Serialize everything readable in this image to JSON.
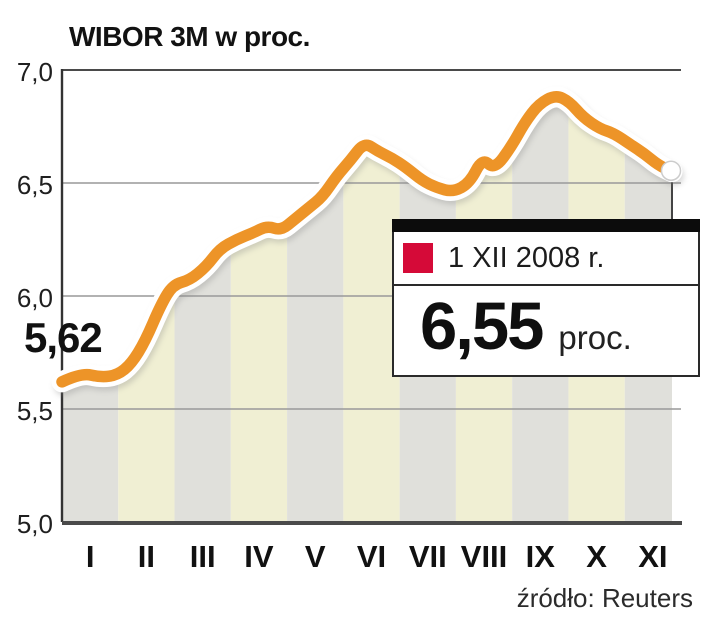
{
  "title": "WIBOR 3M w proc.",
  "source": "źródło: Reuters",
  "start_label": "5,62",
  "callout": {
    "date": "1 XII 2008 r.",
    "value": "6,55",
    "unit": "proc.",
    "marker_color": "#D50A38"
  },
  "colors": {
    "line": "#ED9428",
    "line_halo": "#FFFFFF",
    "endpoint_fill": "#FFFFFF",
    "endpoint_ring": "#CCCCCC",
    "stripe_gray": "#E0E0DB",
    "stripe_cream": "#F0EFD3",
    "grid": "#999999",
    "axis": "#4A4A4A",
    "connector": "#444444",
    "shadow": "#808080"
  },
  "chart_data": {
    "type": "line",
    "title": "WIBOR 3M w proc.",
    "ylabel": "proc.",
    "ylim": [
      5.0,
      7.0
    ],
    "xlim": [
      0,
      11
    ],
    "grid": "horizontal",
    "legend_position": "none",
    "y_ticks": [
      7.0,
      6.5,
      6.0,
      5.5,
      5.0
    ],
    "y_tick_labels": [
      "7,0",
      "6,5",
      "6,0",
      "5,5",
      "5,0"
    ],
    "x_tick_labels": [
      "I",
      "II",
      "III",
      "IV",
      "V",
      "VI",
      "VII",
      "VIII",
      "IX",
      "X",
      "XI"
    ],
    "start_value": 5.62,
    "end_value": 6.55,
    "end_date_label": "1 XII 2008 r.",
    "series": [
      {
        "name": "WIBOR 3M",
        "points": [
          [
            0.0,
            5.62
          ],
          [
            0.35,
            5.66
          ],
          [
            0.7,
            5.64
          ],
          [
            1.0,
            5.65
          ],
          [
            1.25,
            5.7
          ],
          [
            1.5,
            5.8
          ],
          [
            1.78,
            5.96
          ],
          [
            2.0,
            6.05
          ],
          [
            2.3,
            6.07
          ],
          [
            2.6,
            6.13
          ],
          [
            2.85,
            6.21
          ],
          [
            3.15,
            6.25
          ],
          [
            3.45,
            6.28
          ],
          [
            3.7,
            6.31
          ],
          [
            3.95,
            6.29
          ],
          [
            4.2,
            6.34
          ],
          [
            4.45,
            6.39
          ],
          [
            4.7,
            6.44
          ],
          [
            4.95,
            6.53
          ],
          [
            5.2,
            6.6
          ],
          [
            5.45,
            6.68
          ],
          [
            5.7,
            6.64
          ],
          [
            5.95,
            6.61
          ],
          [
            6.2,
            6.57
          ],
          [
            6.5,
            6.51
          ],
          [
            6.75,
            6.48
          ],
          [
            7.05,
            6.46
          ],
          [
            7.35,
            6.5
          ],
          [
            7.58,
            6.61
          ],
          [
            7.8,
            6.56
          ],
          [
            8.1,
            6.66
          ],
          [
            8.35,
            6.77
          ],
          [
            8.6,
            6.85
          ],
          [
            8.9,
            6.89
          ],
          [
            9.15,
            6.86
          ],
          [
            9.4,
            6.79
          ],
          [
            9.7,
            6.74
          ],
          [
            9.95,
            6.72
          ],
          [
            10.25,
            6.67
          ],
          [
            10.5,
            6.63
          ],
          [
            10.75,
            6.58
          ],
          [
            11.0,
            6.55
          ]
        ]
      }
    ]
  }
}
